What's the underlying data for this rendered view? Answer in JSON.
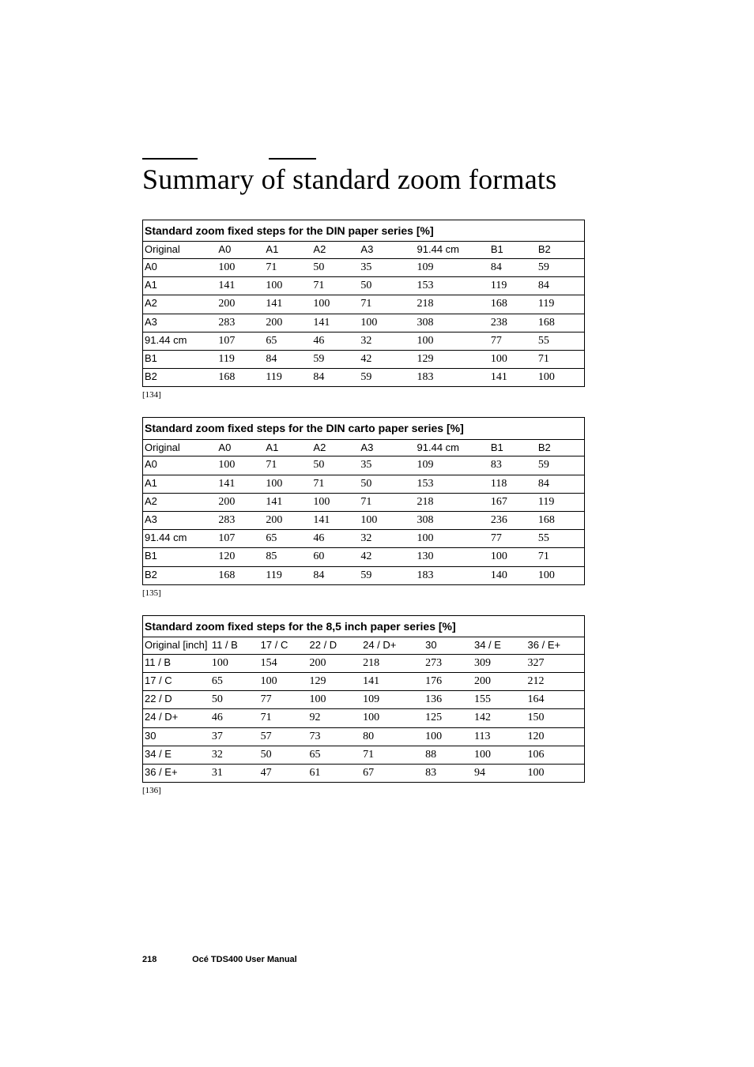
{
  "page": {
    "title": "Summary of standard zoom formats",
    "number": "218",
    "footer": "Océ TDS400 User Manual"
  },
  "tables": [
    {
      "caption": "Standard zoom fixed steps for the DIN paper series [%]",
      "footnote": "[134]",
      "rowHeader": "Original",
      "columns": [
        "A0",
        "A1",
        "A2",
        "A3",
        "91.44 cm",
        "B1",
        "B2"
      ],
      "colClasses": [
        "c0",
        "c1",
        "c2",
        "c3",
        "c4",
        "c5",
        "c6",
        "c7"
      ],
      "rows": [
        {
          "label": "A0",
          "cells": [
            "100",
            "71",
            "50",
            "35",
            "109",
            "84",
            "59"
          ]
        },
        {
          "label": "A1",
          "cells": [
            "141",
            "100",
            "71",
            "50",
            "153",
            "119",
            "84"
          ]
        },
        {
          "label": "A2",
          "cells": [
            "200",
            "141",
            "100",
            "71",
            "218",
            "168",
            "119"
          ]
        },
        {
          "label": "A3",
          "cells": [
            "283",
            "200",
            "141",
            "100",
            "308",
            "238",
            "168"
          ]
        },
        {
          "label": "91.44 cm",
          "cells": [
            "107",
            "65",
            "46",
            "32",
            "100",
            "77",
            "55"
          ]
        },
        {
          "label": "B1",
          "cells": [
            "119",
            "84",
            "59",
            "42",
            "129",
            "100",
            "71"
          ]
        },
        {
          "label": "B2",
          "cells": [
            "168",
            "119",
            "84",
            "59",
            "183",
            "141",
            "100"
          ]
        }
      ]
    },
    {
      "caption": "Standard zoom fixed steps for the DIN carto paper series [%]",
      "footnote": "[135]",
      "rowHeader": "Original",
      "columns": [
        "A0",
        "A1",
        "A2",
        "A3",
        "91.44 cm",
        "B1",
        "B2"
      ],
      "colClasses": [
        "c0",
        "c1",
        "c2",
        "c3",
        "c4",
        "c5",
        "c6",
        "c7"
      ],
      "rows": [
        {
          "label": "A0",
          "cells": [
            "100",
            "71",
            "50",
            "35",
            "109",
            "83",
            "59"
          ]
        },
        {
          "label": "A1",
          "cells": [
            "141",
            "100",
            "71",
            "50",
            "153",
            "118",
            "84"
          ]
        },
        {
          "label": "A2",
          "cells": [
            "200",
            "141",
            "100",
            "71",
            "218",
            "167",
            "119"
          ]
        },
        {
          "label": "A3",
          "cells": [
            "283",
            "200",
            "141",
            "100",
            "308",
            "236",
            "168"
          ]
        },
        {
          "label": "91.44 cm",
          "cells": [
            "107",
            "65",
            "46",
            "32",
            "100",
            "77",
            "55"
          ]
        },
        {
          "label": "B1",
          "cells": [
            "120",
            "85",
            "60",
            "42",
            "130",
            "100",
            "71"
          ]
        },
        {
          "label": "B2",
          "cells": [
            "168",
            "119",
            "84",
            "59",
            "183",
            "140",
            "100"
          ]
        }
      ]
    },
    {
      "caption": "Standard zoom fixed steps for the 8,5 inch paper series [%]",
      "footnote": "[136]",
      "rowHeader": "Original [inch]",
      "columns": [
        "11 / B",
        "17 / C",
        "22 / D",
        "24 / D+",
        "30",
        "34 / E",
        "36 / E+"
      ],
      "colClasses": [
        "d0",
        "d1",
        "d2",
        "d3",
        "d4",
        "d5",
        "d6",
        "d7"
      ],
      "rows": [
        {
          "label": "11 / B",
          "cells": [
            "100",
            "154",
            "200",
            "218",
            "273",
            "309",
            "327"
          ]
        },
        {
          "label": "17 / C",
          "cells": [
            "65",
            "100",
            "129",
            "141",
            "176",
            "200",
            "212"
          ]
        },
        {
          "label": "22 / D",
          "cells": [
            "50",
            "77",
            "100",
            "109",
            "136",
            "155",
            "164"
          ]
        },
        {
          "label": "24 / D+",
          "cells": [
            "46",
            "71",
            "92",
            "100",
            "125",
            "142",
            "150"
          ]
        },
        {
          "label": "30",
          "cells": [
            "37",
            "57",
            "73",
            "80",
            "100",
            "113",
            "120"
          ]
        },
        {
          "label": "34 / E",
          "cells": [
            "32",
            "50",
            "65",
            "71",
            "88",
            "100",
            "106"
          ]
        },
        {
          "label": "36 / E+",
          "cells": [
            "31",
            "47",
            "61",
            "67",
            "83",
            "94",
            "100"
          ]
        }
      ]
    }
  ]
}
